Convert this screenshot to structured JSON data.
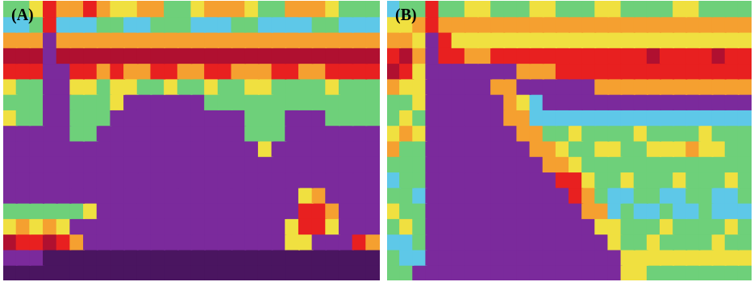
{
  "chart_data": [
    {
      "type": "heatmap",
      "title": "(A)",
      "tick_labels": false,
      "color_range": [
        0,
        150
      ],
      "cells": [
        [
          30,
          30,
          45,
          80,
          60,
          60,
          80,
          60,
          45,
          45,
          60,
          60,
          30,
          30,
          45,
          60,
          60,
          60,
          45,
          30,
          30,
          60,
          60,
          60,
          45,
          30,
          30,
          30
        ],
        [
          15,
          15,
          30,
          80,
          15,
          15,
          15,
          30,
          30,
          15,
          15,
          30,
          30,
          30,
          15,
          15,
          15,
          30,
          30,
          15,
          15,
          15,
          15,
          30,
          30,
          15,
          15,
          15
        ],
        [
          60,
          60,
          60,
          120,
          60,
          60,
          60,
          60,
          60,
          60,
          60,
          60,
          60,
          60,
          60,
          60,
          60,
          60,
          60,
          60,
          60,
          60,
          60,
          60,
          60,
          60,
          60,
          60
        ],
        [
          95,
          95,
          95,
          120,
          95,
          95,
          95,
          95,
          95,
          95,
          95,
          95,
          95,
          95,
          95,
          95,
          95,
          95,
          95,
          95,
          95,
          95,
          95,
          95,
          95,
          95,
          95,
          95
        ],
        [
          80,
          80,
          80,
          120,
          120,
          80,
          80,
          60,
          80,
          60,
          60,
          80,
          80,
          60,
          60,
          80,
          80,
          60,
          60,
          60,
          80,
          80,
          60,
          60,
          80,
          80,
          80,
          80
        ],
        [
          45,
          30,
          30,
          120,
          120,
          45,
          45,
          30,
          45,
          45,
          30,
          30,
          45,
          30,
          30,
          45,
          30,
          30,
          45,
          45,
          30,
          30,
          30,
          30,
          45,
          30,
          30,
          30
        ],
        [
          30,
          30,
          30,
          120,
          120,
          30,
          30,
          30,
          45,
          120,
          120,
          120,
          120,
          120,
          120,
          30,
          30,
          30,
          30,
          30,
          30,
          30,
          30,
          30,
          30,
          30,
          30,
          30
        ],
        [
          45,
          30,
          30,
          120,
          120,
          30,
          30,
          30,
          120,
          120,
          120,
          120,
          120,
          120,
          120,
          120,
          120,
          120,
          30,
          30,
          30,
          120,
          120,
          120,
          30,
          30,
          30,
          30
        ],
        [
          120,
          120,
          120,
          120,
          120,
          30,
          30,
          120,
          120,
          120,
          120,
          120,
          120,
          120,
          120,
          120,
          120,
          120,
          30,
          30,
          30,
          120,
          120,
          120,
          120,
          120,
          120,
          120
        ],
        [
          120,
          120,
          120,
          120,
          120,
          120,
          120,
          120,
          120,
          120,
          120,
          120,
          120,
          120,
          120,
          120,
          120,
          120,
          120,
          45,
          120,
          120,
          120,
          120,
          120,
          120,
          120,
          120
        ],
        [
          120,
          120,
          120,
          120,
          120,
          120,
          120,
          120,
          120,
          120,
          120,
          120,
          120,
          120,
          120,
          120,
          120,
          120,
          120,
          120,
          120,
          120,
          120,
          120,
          120,
          120,
          120,
          120
        ],
        [
          120,
          120,
          120,
          120,
          120,
          120,
          120,
          120,
          120,
          120,
          120,
          120,
          120,
          120,
          120,
          120,
          120,
          120,
          120,
          120,
          120,
          120,
          120,
          120,
          120,
          120,
          120,
          120
        ],
        [
          120,
          120,
          120,
          120,
          120,
          120,
          120,
          120,
          120,
          120,
          120,
          120,
          120,
          120,
          120,
          120,
          120,
          120,
          120,
          120,
          120,
          120,
          45,
          60,
          120,
          120,
          120,
          120
        ],
        [
          30,
          30,
          30,
          30,
          30,
          30,
          45,
          120,
          120,
          120,
          120,
          120,
          120,
          120,
          120,
          120,
          120,
          120,
          120,
          120,
          120,
          120,
          80,
          80,
          60,
          120,
          120,
          120
        ],
        [
          45,
          60,
          45,
          60,
          45,
          120,
          120,
          120,
          120,
          120,
          120,
          120,
          120,
          120,
          120,
          120,
          120,
          120,
          120,
          120,
          120,
          45,
          80,
          80,
          45,
          120,
          120,
          120
        ],
        [
          95,
          80,
          80,
          95,
          80,
          60,
          120,
          120,
          120,
          120,
          120,
          120,
          120,
          120,
          120,
          120,
          120,
          120,
          120,
          120,
          120,
          45,
          45,
          120,
          120,
          120,
          80,
          60
        ],
        [
          120,
          120,
          120,
          145,
          145,
          145,
          145,
          145,
          145,
          145,
          145,
          145,
          145,
          145,
          145,
          145,
          145,
          145,
          145,
          145,
          145,
          145,
          145,
          145,
          145,
          145,
          145,
          145
        ],
        [
          145,
          145,
          145,
          145,
          145,
          145,
          145,
          145,
          145,
          145,
          145,
          145,
          145,
          145,
          145,
          145,
          145,
          145,
          145,
          145,
          145,
          145,
          145,
          145,
          145,
          145,
          145,
          145
        ]
      ]
    },
    {
      "type": "heatmap",
      "title": "(B)",
      "tick_labels": false,
      "color_range": [
        0,
        150
      ],
      "cells": [
        [
          15,
          30,
          30,
          80,
          30,
          30,
          45,
          45,
          30,
          30,
          30,
          45,
          45,
          30,
          30,
          30,
          45,
          45,
          30,
          30,
          30,
          30,
          45,
          45,
          30,
          30,
          30,
          30
        ],
        [
          45,
          45,
          60,
          80,
          60,
          60,
          60,
          60,
          60,
          60,
          60,
          60,
          60,
          60,
          60,
          60,
          60,
          60,
          60,
          60,
          60,
          60,
          60,
          60,
          60,
          60,
          60,
          60
        ],
        [
          60,
          60,
          45,
          120,
          80,
          45,
          45,
          45,
          45,
          45,
          45,
          45,
          45,
          45,
          45,
          45,
          45,
          45,
          45,
          45,
          45,
          45,
          45,
          45,
          45,
          45,
          45,
          45
        ],
        [
          80,
          95,
          60,
          120,
          80,
          80,
          60,
          60,
          80,
          80,
          80,
          80,
          80,
          80,
          80,
          80,
          80,
          80,
          80,
          80,
          95,
          80,
          80,
          80,
          80,
          95,
          80,
          80
        ],
        [
          95,
          80,
          45,
          120,
          120,
          120,
          120,
          120,
          120,
          120,
          60,
          60,
          60,
          80,
          80,
          80,
          80,
          80,
          80,
          80,
          80,
          80,
          80,
          80,
          80,
          80,
          80,
          80
        ],
        [
          60,
          45,
          45,
          120,
          120,
          120,
          120,
          120,
          60,
          60,
          120,
          120,
          120,
          120,
          120,
          120,
          60,
          60,
          60,
          60,
          60,
          60,
          60,
          60,
          60,
          60,
          60,
          60
        ],
        [
          30,
          30,
          45,
          120,
          120,
          120,
          120,
          120,
          120,
          60,
          45,
          15,
          120,
          120,
          120,
          120,
          120,
          120,
          120,
          120,
          120,
          120,
          120,
          120,
          120,
          120,
          120,
          120
        ],
        [
          30,
          45,
          30,
          120,
          120,
          120,
          120,
          120,
          120,
          60,
          60,
          15,
          15,
          15,
          15,
          15,
          15,
          15,
          15,
          15,
          15,
          15,
          15,
          15,
          15,
          15,
          15,
          15
        ],
        [
          45,
          60,
          45,
          120,
          120,
          120,
          120,
          120,
          120,
          120,
          60,
          60,
          30,
          30,
          45,
          30,
          30,
          30,
          30,
          45,
          30,
          30,
          30,
          30,
          45,
          30,
          30,
          30
        ],
        [
          60,
          30,
          30,
          120,
          120,
          120,
          120,
          120,
          120,
          120,
          120,
          60,
          60,
          45,
          30,
          30,
          45,
          45,
          30,
          30,
          45,
          45,
          45,
          60,
          45,
          45,
          30,
          30
        ],
        [
          30,
          30,
          30,
          120,
          120,
          120,
          120,
          120,
          120,
          120,
          120,
          120,
          60,
          60,
          45,
          30,
          30,
          30,
          30,
          30,
          30,
          30,
          30,
          30,
          30,
          30,
          30,
          30
        ],
        [
          15,
          30,
          30,
          120,
          120,
          120,
          120,
          120,
          120,
          120,
          120,
          120,
          120,
          80,
          80,
          45,
          30,
          30,
          45,
          30,
          30,
          30,
          45,
          30,
          30,
          30,
          45,
          30
        ],
        [
          30,
          30,
          15,
          120,
          120,
          120,
          120,
          120,
          120,
          120,
          120,
          120,
          120,
          120,
          80,
          60,
          30,
          15,
          15,
          30,
          30,
          15,
          15,
          30,
          30,
          15,
          15,
          30
        ],
        [
          45,
          30,
          30,
          120,
          120,
          120,
          120,
          120,
          120,
          120,
          120,
          120,
          120,
          120,
          120,
          60,
          60,
          15,
          30,
          15,
          15,
          30,
          15,
          15,
          30,
          15,
          15,
          15
        ],
        [
          30,
          45,
          30,
          120,
          120,
          120,
          120,
          120,
          120,
          120,
          120,
          120,
          120,
          120,
          120,
          120,
          45,
          45,
          30,
          30,
          30,
          45,
          30,
          30,
          30,
          30,
          45,
          30
        ],
        [
          15,
          15,
          30,
          120,
          120,
          120,
          120,
          120,
          120,
          120,
          120,
          120,
          120,
          120,
          120,
          120,
          120,
          45,
          30,
          30,
          45,
          30,
          30,
          30,
          30,
          45,
          30,
          30
        ],
        [
          30,
          15,
          15,
          120,
          120,
          120,
          120,
          120,
          120,
          120,
          120,
          120,
          120,
          120,
          120,
          120,
          120,
          120,
          45,
          45,
          45,
          45,
          45,
          45,
          45,
          45,
          45,
          45
        ],
        [
          30,
          30,
          120,
          120,
          120,
          120,
          120,
          120,
          120,
          120,
          120,
          120,
          120,
          120,
          120,
          120,
          120,
          120,
          45,
          45,
          30,
          30,
          30,
          30,
          30,
          30,
          30,
          30
        ]
      ]
    }
  ]
}
